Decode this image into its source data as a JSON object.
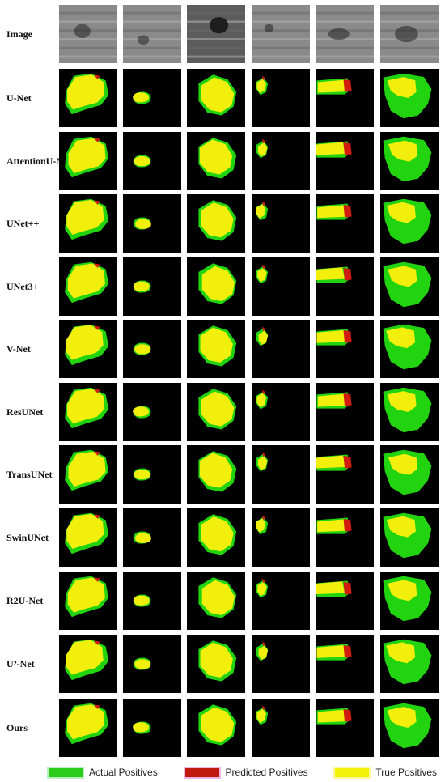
{
  "rows": [
    {
      "label": "Image"
    },
    {
      "label": "U-Net"
    },
    {
      "label_line1": "Attention",
      "label_line2": "U-Net"
    },
    {
      "label": "UNet++"
    },
    {
      "label": "UNet3+"
    },
    {
      "label": "V-Net"
    },
    {
      "label": "ResUNet"
    },
    {
      "label": "TransUNet"
    },
    {
      "label": "SwinUNet"
    },
    {
      "label": "R2U-Net"
    },
    {
      "label_main": "U",
      "label_sup": "2",
      "label_tail": "-Net"
    },
    {
      "label": "Ours"
    }
  ],
  "legend": {
    "actual": {
      "label": "Actual Positives",
      "color": "#2ecc1a"
    },
    "predicted": {
      "label": "Predicted Positives",
      "color": "#c0190f"
    },
    "true": {
      "label": "True Positives",
      "color": "#f2f20a"
    }
  },
  "colors": {
    "green": "#22d40f",
    "red": "#d11a10",
    "yellow": "#f2ef0c",
    "background": "#000000"
  }
}
